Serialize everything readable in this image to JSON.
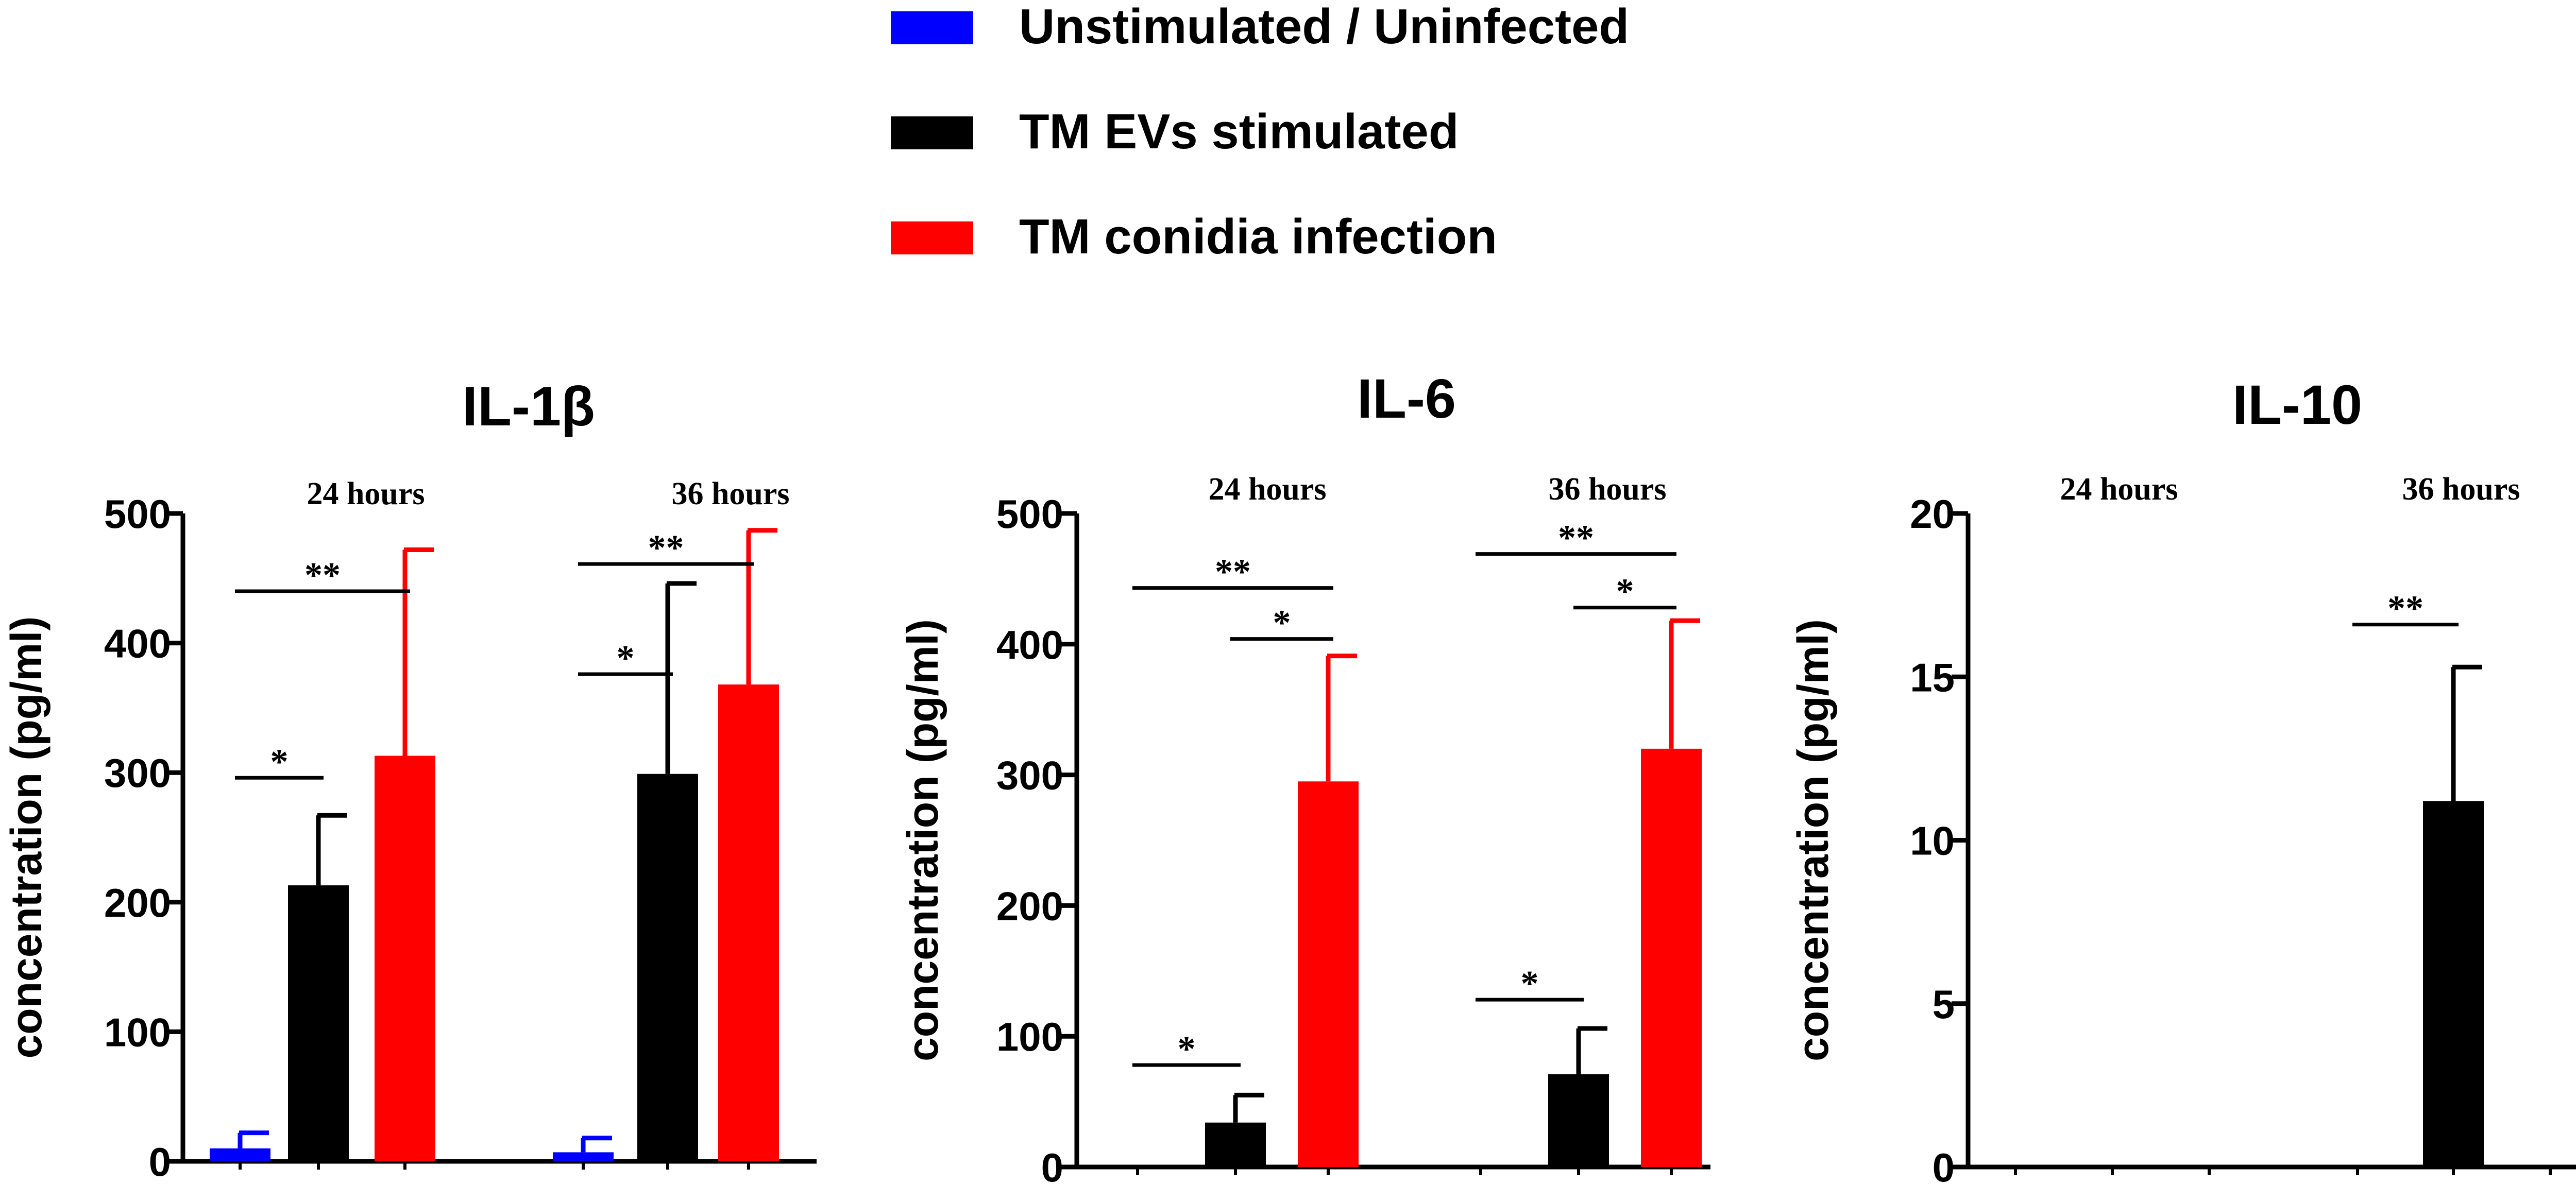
{
  "legend": {
    "items": [
      {
        "label": "Unstimulated / Uninfected",
        "color": "#0000ff"
      },
      {
        "label": "TM EVs stimulated",
        "color": "#000000"
      },
      {
        "label": "TM conidia infection",
        "color": "#ff0000"
      }
    ]
  },
  "chart_data": [
    {
      "type": "bar",
      "title": "IL-1β",
      "ylabel": "concentration (pg/ml)",
      "xlabel": "",
      "ylim": [
        0,
        500
      ],
      "yticks": [
        0,
        100,
        200,
        300,
        400,
        500
      ],
      "groups": [
        "24 hours",
        "36 hours"
      ],
      "series": [
        {
          "name": "Unstimulated / Uninfected",
          "color": "#0000ff",
          "values": [
            10,
            7
          ],
          "errors": [
            12,
            11
          ]
        },
        {
          "name": "TM EVs stimulated",
          "color": "#000000",
          "values": [
            213,
            299
          ],
          "errors": [
            54,
            147
          ]
        },
        {
          "name": "TM conidia infection",
          "color": "#ff0000",
          "values": [
            313,
            368
          ],
          "errors": [
            159,
            119
          ]
        }
      ],
      "significance": [
        {
          "group": 0,
          "from": 0,
          "to": 1,
          "label": "*",
          "y": 296
        },
        {
          "group": 0,
          "from": 0,
          "to": 2,
          "label": "**",
          "y": 440
        },
        {
          "group": 1,
          "from": 0,
          "to": 1,
          "label": "*",
          "y": 376
        },
        {
          "group": 1,
          "from": 0,
          "to": 2,
          "label": "**",
          "y": 461
        }
      ]
    },
    {
      "type": "bar",
      "title": "IL-6",
      "ylabel": "concentration (pg/ml)",
      "xlabel": "",
      "ylim": [
        0,
        500
      ],
      "yticks": [
        0,
        100,
        200,
        300,
        400,
        500
      ],
      "groups": [
        "24 hours",
        "36 hours"
      ],
      "series": [
        {
          "name": "Unstimulated / Uninfected",
          "color": "#0000ff",
          "values": [
            0,
            0
          ],
          "errors": [
            0,
            0
          ]
        },
        {
          "name": "TM EVs stimulated",
          "color": "#000000",
          "values": [
            34,
            71
          ],
          "errors": [
            21,
            35
          ]
        },
        {
          "name": "TM conidia infection",
          "color": "#ff0000",
          "values": [
            295,
            320
          ],
          "errors": [
            96,
            98
          ]
        }
      ],
      "significance": [
        {
          "group": 0,
          "from": 0,
          "to": 1,
          "label": "*",
          "y": 78
        },
        {
          "group": 0,
          "from": 1,
          "to": 2,
          "label": "*",
          "y": 404
        },
        {
          "group": 0,
          "from": 0,
          "to": 2,
          "label": "**",
          "y": 443
        },
        {
          "group": 1,
          "from": 0,
          "to": 1,
          "label": "*",
          "y": 128
        },
        {
          "group": 1,
          "from": 1,
          "to": 2,
          "label": "*",
          "y": 428
        },
        {
          "group": 1,
          "from": 0,
          "to": 2,
          "label": "**",
          "y": 469
        }
      ]
    },
    {
      "type": "bar",
      "title": "IL-10",
      "ylabel": "concentration (pg/ml)",
      "xlabel": "",
      "ylim": [
        0,
        20
      ],
      "yticks": [
        0,
        5,
        10,
        15,
        20
      ],
      "groups": [
        "24 hours",
        "36 hours"
      ],
      "series": [
        {
          "name": "Unstimulated / Uninfected",
          "color": "#0000ff",
          "values": [
            0,
            0
          ],
          "errors": [
            0,
            0
          ]
        },
        {
          "name": "TM EVs stimulated",
          "color": "#000000",
          "values": [
            0,
            11.2
          ],
          "errors": [
            0,
            4.1
          ]
        },
        {
          "name": "TM conidia infection",
          "color": "#ff0000",
          "values": [
            0,
            0
          ],
          "errors": [
            0,
            0
          ]
        }
      ],
      "significance": [
        {
          "group": 1,
          "from": 0,
          "to": 1,
          "label": "**",
          "y": 16.6
        }
      ]
    }
  ]
}
